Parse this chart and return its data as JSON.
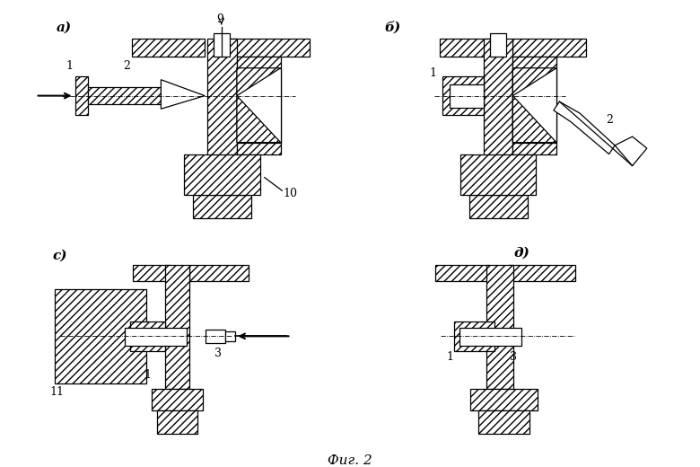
{
  "bg": "#ffffff",
  "lc": "#000000",
  "fig_label": "Фиг. 2",
  "label_a": "а)",
  "label_b": "б)",
  "label_c": "с)",
  "label_d": "д)"
}
